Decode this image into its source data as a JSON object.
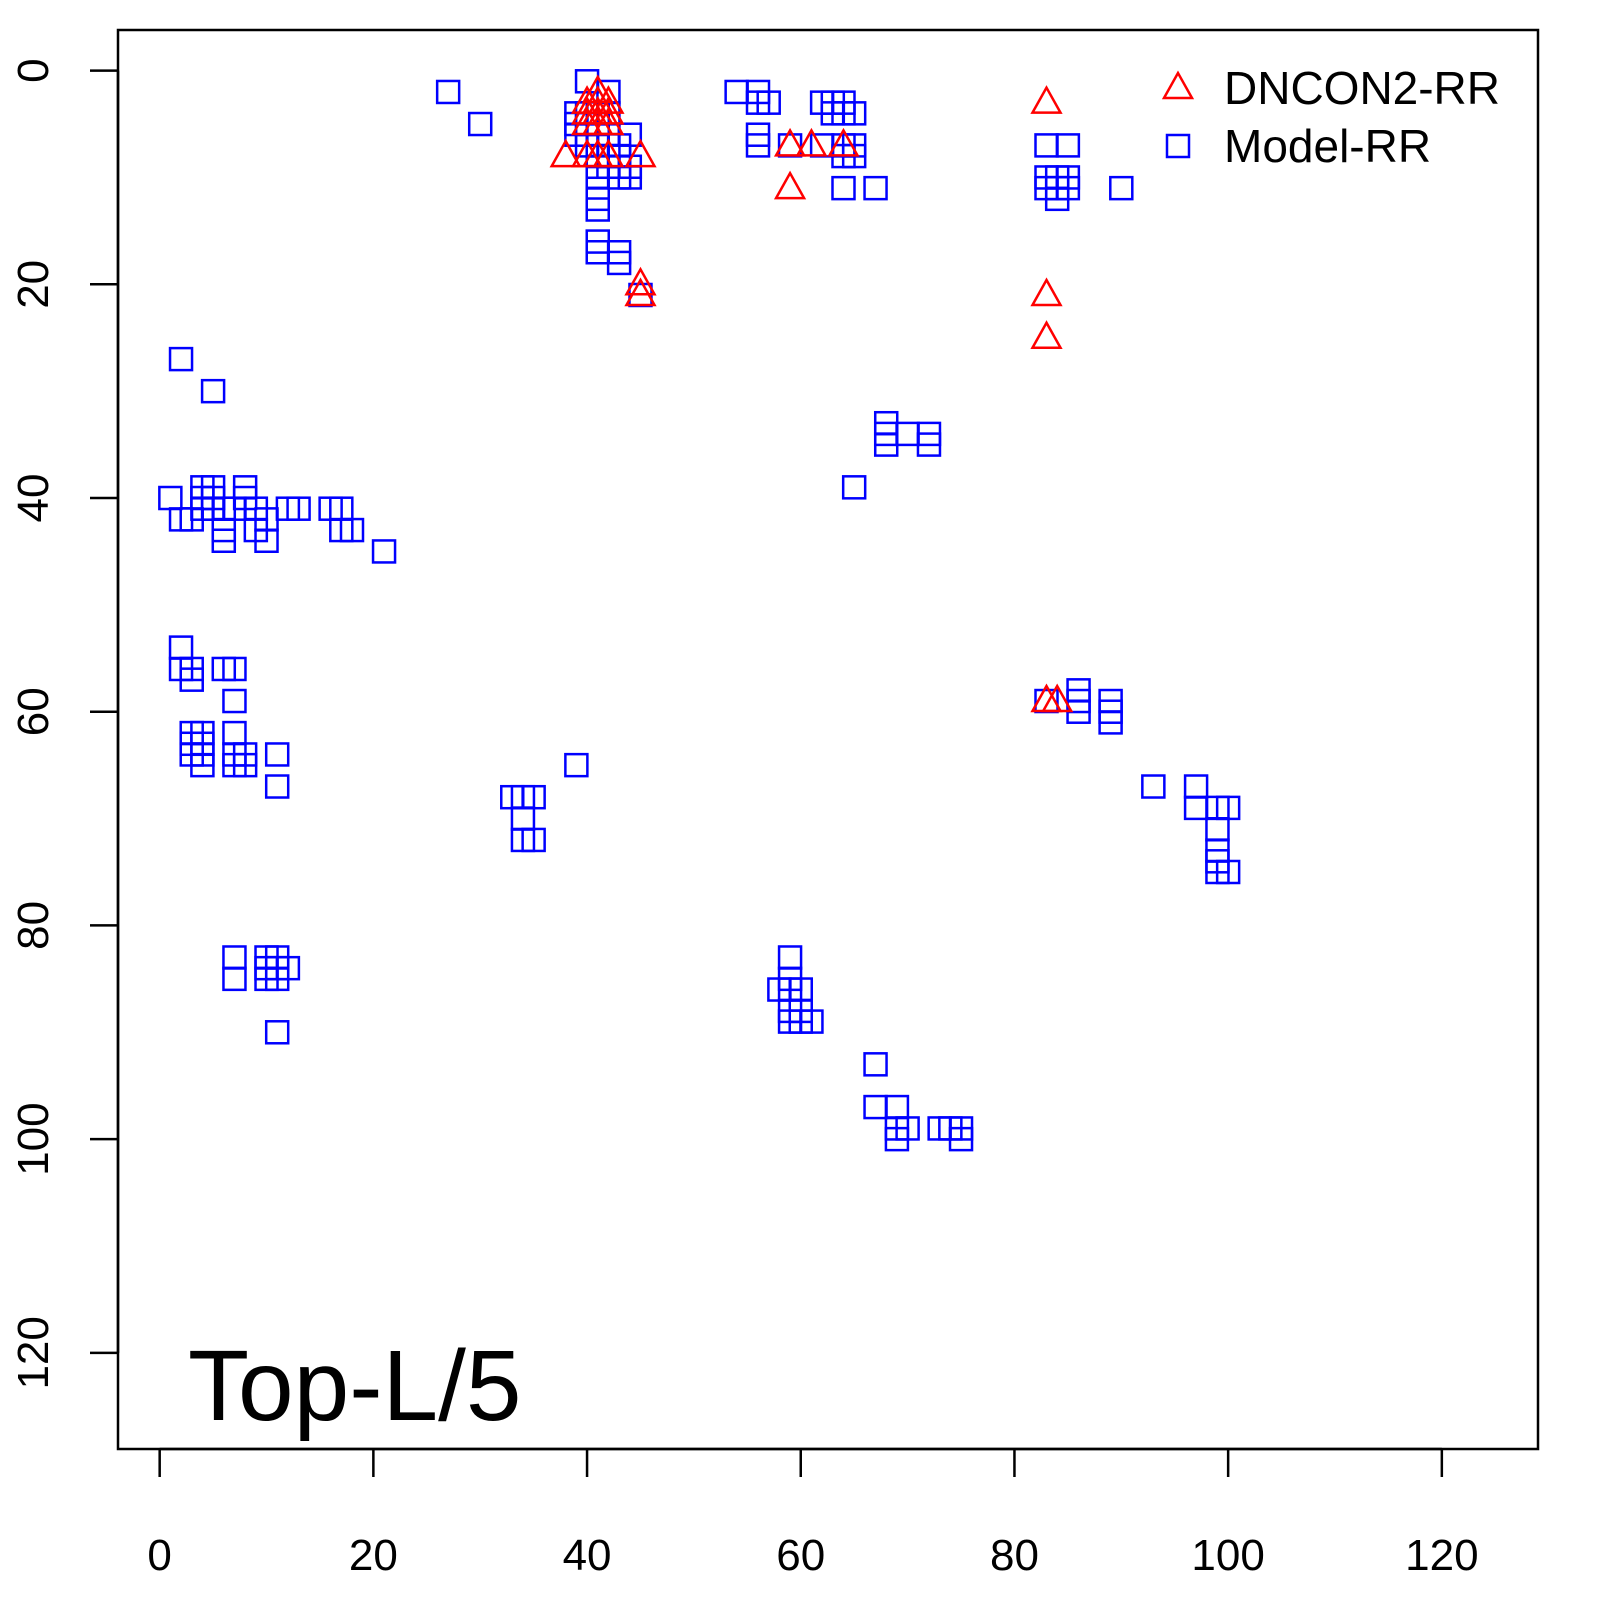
{
  "chart_data": {
    "type": "scatter",
    "title": "",
    "annotation": "Top-L/5",
    "xlabel": "",
    "ylabel": "",
    "xlim": [
      -3.9,
      129
    ],
    "ylim": [
      -3.8,
      129
    ],
    "y_reversed": true,
    "xticks": [
      0,
      20,
      40,
      60,
      80,
      100,
      120
    ],
    "yticks": [
      0,
      20,
      40,
      60,
      80,
      100,
      120
    ],
    "grid": false,
    "legend_position": "top-right",
    "series": [
      {
        "name": "DNCON2-RR",
        "marker": "triangle",
        "color": "#ff0000",
        "points": [
          [
            41,
            2
          ],
          [
            40,
            3
          ],
          [
            41,
            3
          ],
          [
            42,
            3
          ],
          [
            40,
            4
          ],
          [
            41,
            4
          ],
          [
            42,
            4
          ],
          [
            40,
            5
          ],
          [
            41,
            5
          ],
          [
            42,
            5
          ],
          [
            38,
            8
          ],
          [
            40,
            8
          ],
          [
            41,
            8
          ],
          [
            42,
            8
          ],
          [
            45,
            8
          ],
          [
            45,
            20
          ],
          [
            45,
            21
          ],
          [
            59,
            7
          ],
          [
            61,
            7
          ],
          [
            64,
            7
          ],
          [
            59,
            11
          ],
          [
            83,
            3
          ],
          [
            83,
            21
          ],
          [
            83,
            25
          ],
          [
            83,
            59
          ],
          [
            84,
            59
          ]
        ]
      },
      {
        "name": "Model-RR",
        "marker": "square",
        "color": "#0000ff",
        "points": [
          [
            27,
            2
          ],
          [
            30,
            5
          ],
          [
            40,
            1
          ],
          [
            42,
            2
          ],
          [
            39,
            4
          ],
          [
            40,
            4
          ],
          [
            41,
            4
          ],
          [
            42,
            4
          ],
          [
            39,
            5
          ],
          [
            40,
            5
          ],
          [
            41,
            5
          ],
          [
            39,
            6
          ],
          [
            40,
            6
          ],
          [
            42,
            6
          ],
          [
            44,
            6
          ],
          [
            40,
            7
          ],
          [
            41,
            7
          ],
          [
            43,
            7
          ],
          [
            41,
            8
          ],
          [
            42,
            8
          ],
          [
            43,
            8
          ],
          [
            41,
            9
          ],
          [
            42,
            9
          ],
          [
            43,
            9
          ],
          [
            44,
            9
          ],
          [
            41,
            10
          ],
          [
            43,
            10
          ],
          [
            44,
            10
          ],
          [
            41,
            12
          ],
          [
            41,
            13
          ],
          [
            41,
            16
          ],
          [
            41,
            17
          ],
          [
            43,
            17
          ],
          [
            43,
            18
          ],
          [
            45,
            21
          ],
          [
            54,
            2
          ],
          [
            56,
            2
          ],
          [
            56,
            3
          ],
          [
            57,
            3
          ],
          [
            56,
            6
          ],
          [
            56,
            7
          ],
          [
            59,
            7
          ],
          [
            62,
            3
          ],
          [
            63,
            3
          ],
          [
            64,
            3
          ],
          [
            63,
            4
          ],
          [
            64,
            4
          ],
          [
            65,
            4
          ],
          [
            62,
            7
          ],
          [
            64,
            7
          ],
          [
            65,
            7
          ],
          [
            64,
            8
          ],
          [
            65,
            8
          ],
          [
            64,
            11
          ],
          [
            67,
            11
          ],
          [
            83,
            7
          ],
          [
            85,
            7
          ],
          [
            83,
            10
          ],
          [
            84,
            10
          ],
          [
            85,
            10
          ],
          [
            83,
            11
          ],
          [
            84,
            11
          ],
          [
            85,
            11
          ],
          [
            84,
            12
          ],
          [
            90,
            11
          ],
          [
            2,
            27
          ],
          [
            5,
            30
          ],
          [
            1,
            40
          ],
          [
            4,
            39
          ],
          [
            5,
            39
          ],
          [
            8,
            39
          ],
          [
            2,
            42
          ],
          [
            3,
            42
          ],
          [
            4,
            41
          ],
          [
            5,
            41
          ],
          [
            6,
            41
          ],
          [
            7,
            41
          ],
          [
            4,
            40
          ],
          [
            5,
            40
          ],
          [
            8,
            40
          ],
          [
            9,
            41
          ],
          [
            10,
            42
          ],
          [
            6,
            43
          ],
          [
            6,
            44
          ],
          [
            9,
            43
          ],
          [
            10,
            44
          ],
          [
            12,
            41
          ],
          [
            13,
            41
          ],
          [
            16,
            41
          ],
          [
            17,
            41
          ],
          [
            17,
            43
          ],
          [
            18,
            43
          ],
          [
            21,
            45
          ],
          [
            2,
            54
          ],
          [
            2,
            56
          ],
          [
            3,
            56
          ],
          [
            3,
            57
          ],
          [
            6,
            56
          ],
          [
            7,
            56
          ],
          [
            7,
            59
          ],
          [
            3,
            62
          ],
          [
            4,
            62
          ],
          [
            7,
            62
          ],
          [
            3,
            63
          ],
          [
            4,
            63
          ],
          [
            3,
            64
          ],
          [
            4,
            64
          ],
          [
            4,
            65
          ],
          [
            7,
            64
          ],
          [
            8,
            64
          ],
          [
            7,
            65
          ],
          [
            8,
            65
          ],
          [
            11,
            64
          ],
          [
            11,
            67
          ],
          [
            39,
            65
          ],
          [
            33,
            68
          ],
          [
            34,
            68
          ],
          [
            35,
            68
          ],
          [
            34,
            70
          ],
          [
            34,
            72
          ],
          [
            35,
            72
          ],
          [
            65,
            39
          ],
          [
            68,
            33
          ],
          [
            68,
            34
          ],
          [
            68,
            35
          ],
          [
            70,
            34
          ],
          [
            72,
            34
          ],
          [
            72,
            35
          ],
          [
            83,
            59
          ],
          [
            86,
            58
          ],
          [
            86,
            59
          ],
          [
            86,
            60
          ],
          [
            89,
            59
          ],
          [
            89,
            60
          ],
          [
            89,
            61
          ],
          [
            93,
            67
          ],
          [
            97,
            67
          ],
          [
            97,
            69
          ],
          [
            99,
            69
          ],
          [
            100,
            69
          ],
          [
            99,
            71
          ],
          [
            99,
            73
          ],
          [
            99,
            74
          ],
          [
            99,
            75
          ],
          [
            100,
            75
          ],
          [
            7,
            83
          ],
          [
            7,
            85
          ],
          [
            10,
            83
          ],
          [
            11,
            83
          ],
          [
            10,
            84
          ],
          [
            11,
            84
          ],
          [
            12,
            84
          ],
          [
            10,
            85
          ],
          [
            11,
            85
          ],
          [
            11,
            90
          ],
          [
            59,
            83
          ],
          [
            59,
            85
          ],
          [
            58,
            86
          ],
          [
            59,
            86
          ],
          [
            60,
            86
          ],
          [
            59,
            88
          ],
          [
            60,
            88
          ],
          [
            60,
            89
          ],
          [
            61,
            89
          ],
          [
            59,
            89
          ],
          [
            67,
            93
          ],
          [
            67,
            97
          ],
          [
            69,
            97
          ],
          [
            69,
            99
          ],
          [
            69,
            100
          ],
          [
            70,
            99
          ],
          [
            73,
            99
          ],
          [
            74,
            99
          ],
          [
            75,
            99
          ],
          [
            75,
            100
          ]
        ]
      }
    ]
  }
}
